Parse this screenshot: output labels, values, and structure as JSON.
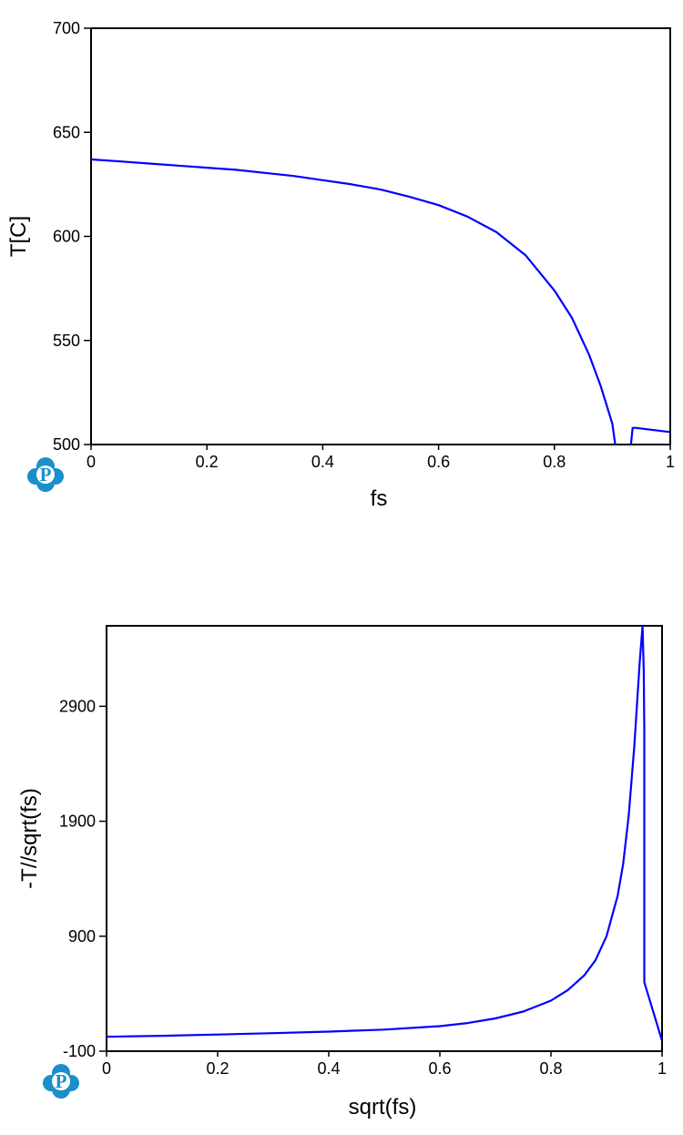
{
  "logo": {
    "icon": "pandat-p-logo-icon",
    "letter": "P",
    "color": "#1a8fc9"
  },
  "chart_data": [
    {
      "type": "line",
      "xlabel": "fs",
      "ylabel": "T[C]",
      "xlim": [
        0,
        1
      ],
      "ylim": [
        500,
        700
      ],
      "xticks": [
        0,
        0.2,
        0.4,
        0.6,
        0.8,
        1
      ],
      "xtick_labels": [
        "0",
        "0.2",
        "0.4",
        "0.6",
        "0.8",
        "1"
      ],
      "yticks": [
        500,
        550,
        600,
        650,
        700
      ],
      "ytick_labels": [
        "500",
        "550",
        "600",
        "650",
        "700"
      ],
      "grid": false,
      "series": [
        {
          "color": "#0000ff",
          "x": [
            0,
            0.05,
            0.1,
            0.15,
            0.2,
            0.25,
            0.3,
            0.35,
            0.4,
            0.45,
            0.5,
            0.55,
            0.6,
            0.65,
            0.7,
            0.75,
            0.8,
            0.83,
            0.86,
            0.88,
            0.9,
            0.91,
            0.92,
            0.935,
            0.94,
            1.0
          ],
          "y": [
            637,
            636,
            635,
            634,
            633,
            632,
            630.5,
            629,
            627,
            625,
            622.5,
            619,
            615,
            609.5,
            602,
            591,
            574,
            561,
            543,
            528,
            510,
            490,
            467,
            508,
            508,
            506
          ]
        }
      ]
    },
    {
      "type": "line",
      "xlabel": "sqrt(fs)",
      "ylabel": "-T//sqrt(fs)",
      "xlim": [
        0,
        1
      ],
      "ylim": [
        -100,
        3600
      ],
      "xticks": [
        0,
        0.2,
        0.4,
        0.6,
        0.8,
        1
      ],
      "xtick_labels": [
        "0",
        "0.2",
        "0.4",
        "0.6",
        "0.8",
        "1"
      ],
      "yticks": [
        -100,
        900,
        1900,
        2900
      ],
      "ytick_labels": [
        "-100",
        "900",
        "1900",
        "2900"
      ],
      "grid": false,
      "series": [
        {
          "color": "#0000ff",
          "x": [
            0,
            0.1,
            0.2,
            0.3,
            0.4,
            0.5,
            0.6,
            0.65,
            0.7,
            0.75,
            0.8,
            0.83,
            0.86,
            0.88,
            0.9,
            0.92,
            0.93,
            0.94,
            0.95,
            0.96,
            0.965,
            0.967,
            0.968,
            0.968,
            1.0
          ],
          "y": [
            26,
            34,
            45,
            57,
            70,
            88,
            118,
            145,
            185,
            245,
            340,
            430,
            560,
            690,
            900,
            1250,
            1530,
            1950,
            2550,
            3300,
            3600,
            3200,
            2700,
            500,
            -10
          ]
        }
      ]
    }
  ]
}
